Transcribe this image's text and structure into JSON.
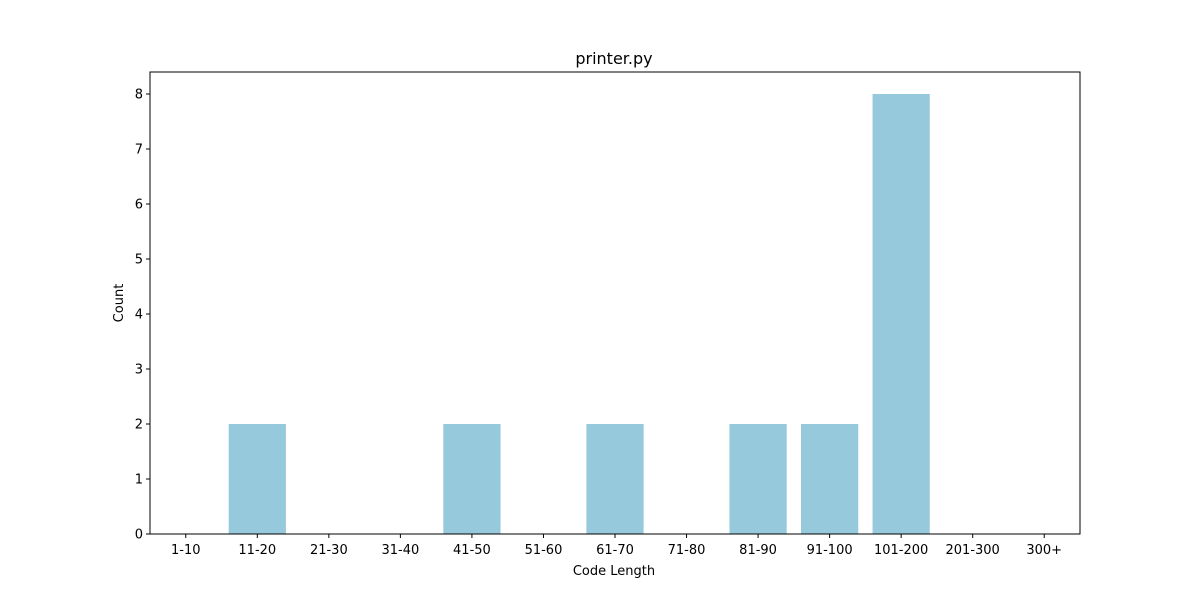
{
  "chart_data": {
    "type": "bar",
    "title": "printer.py",
    "xlabel": "Code Length",
    "ylabel": "Count",
    "categories": [
      "1-10",
      "11-20",
      "21-30",
      "31-40",
      "41-50",
      "51-60",
      "61-70",
      "71-80",
      "81-90",
      "91-100",
      "101-200",
      "201-300",
      "300+"
    ],
    "values": [
      0,
      2,
      0,
      0,
      2,
      0,
      2,
      0,
      2,
      2,
      8,
      0,
      0
    ],
    "ylim": [
      0,
      8.4
    ],
    "yticks": [
      0,
      1,
      2,
      3,
      4,
      5,
      6,
      7,
      8
    ],
    "grid": false,
    "bar_color": "#96c9dc"
  }
}
